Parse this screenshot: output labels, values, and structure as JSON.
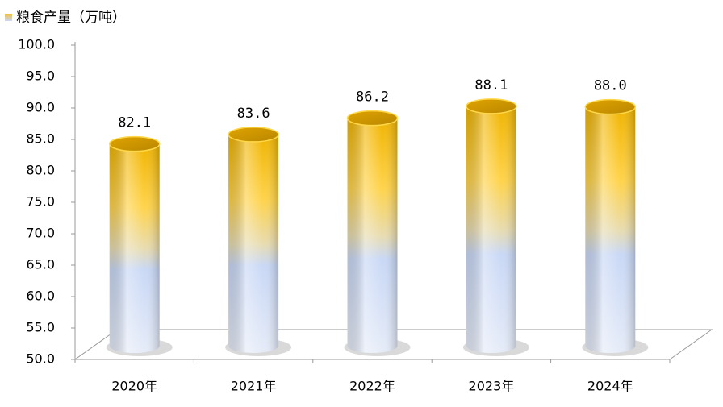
{
  "chart_data": {
    "type": "bar",
    "categories": [
      "2020年",
      "2021年",
      "2022年",
      "2023年",
      "2024年"
    ],
    "series": [
      {
        "name": "粮食产量（万吨）",
        "values": [
          82.1,
          83.6,
          86.2,
          88.1,
          88.0
        ],
        "value_labels": [
          "82.1",
          "83.6",
          "86.2",
          "88.1",
          "88.0"
        ]
      }
    ],
    "ylim": [
      50,
      100
    ],
    "yticks": [
      {
        "value": 50,
        "label": "50.0"
      },
      {
        "value": 55,
        "label": "55.0"
      },
      {
        "value": 60,
        "label": "60.0"
      },
      {
        "value": 65,
        "label": "65.0"
      },
      {
        "value": 70,
        "label": "70.0"
      },
      {
        "value": 75,
        "label": "75.0"
      },
      {
        "value": 80,
        "label": "80.0"
      },
      {
        "value": 85,
        "label": "85.0"
      },
      {
        "value": 90,
        "label": "90.0"
      },
      {
        "value": 95,
        "label": "95.0"
      },
      {
        "value": 100,
        "label": "100.0"
      }
    ]
  }
}
